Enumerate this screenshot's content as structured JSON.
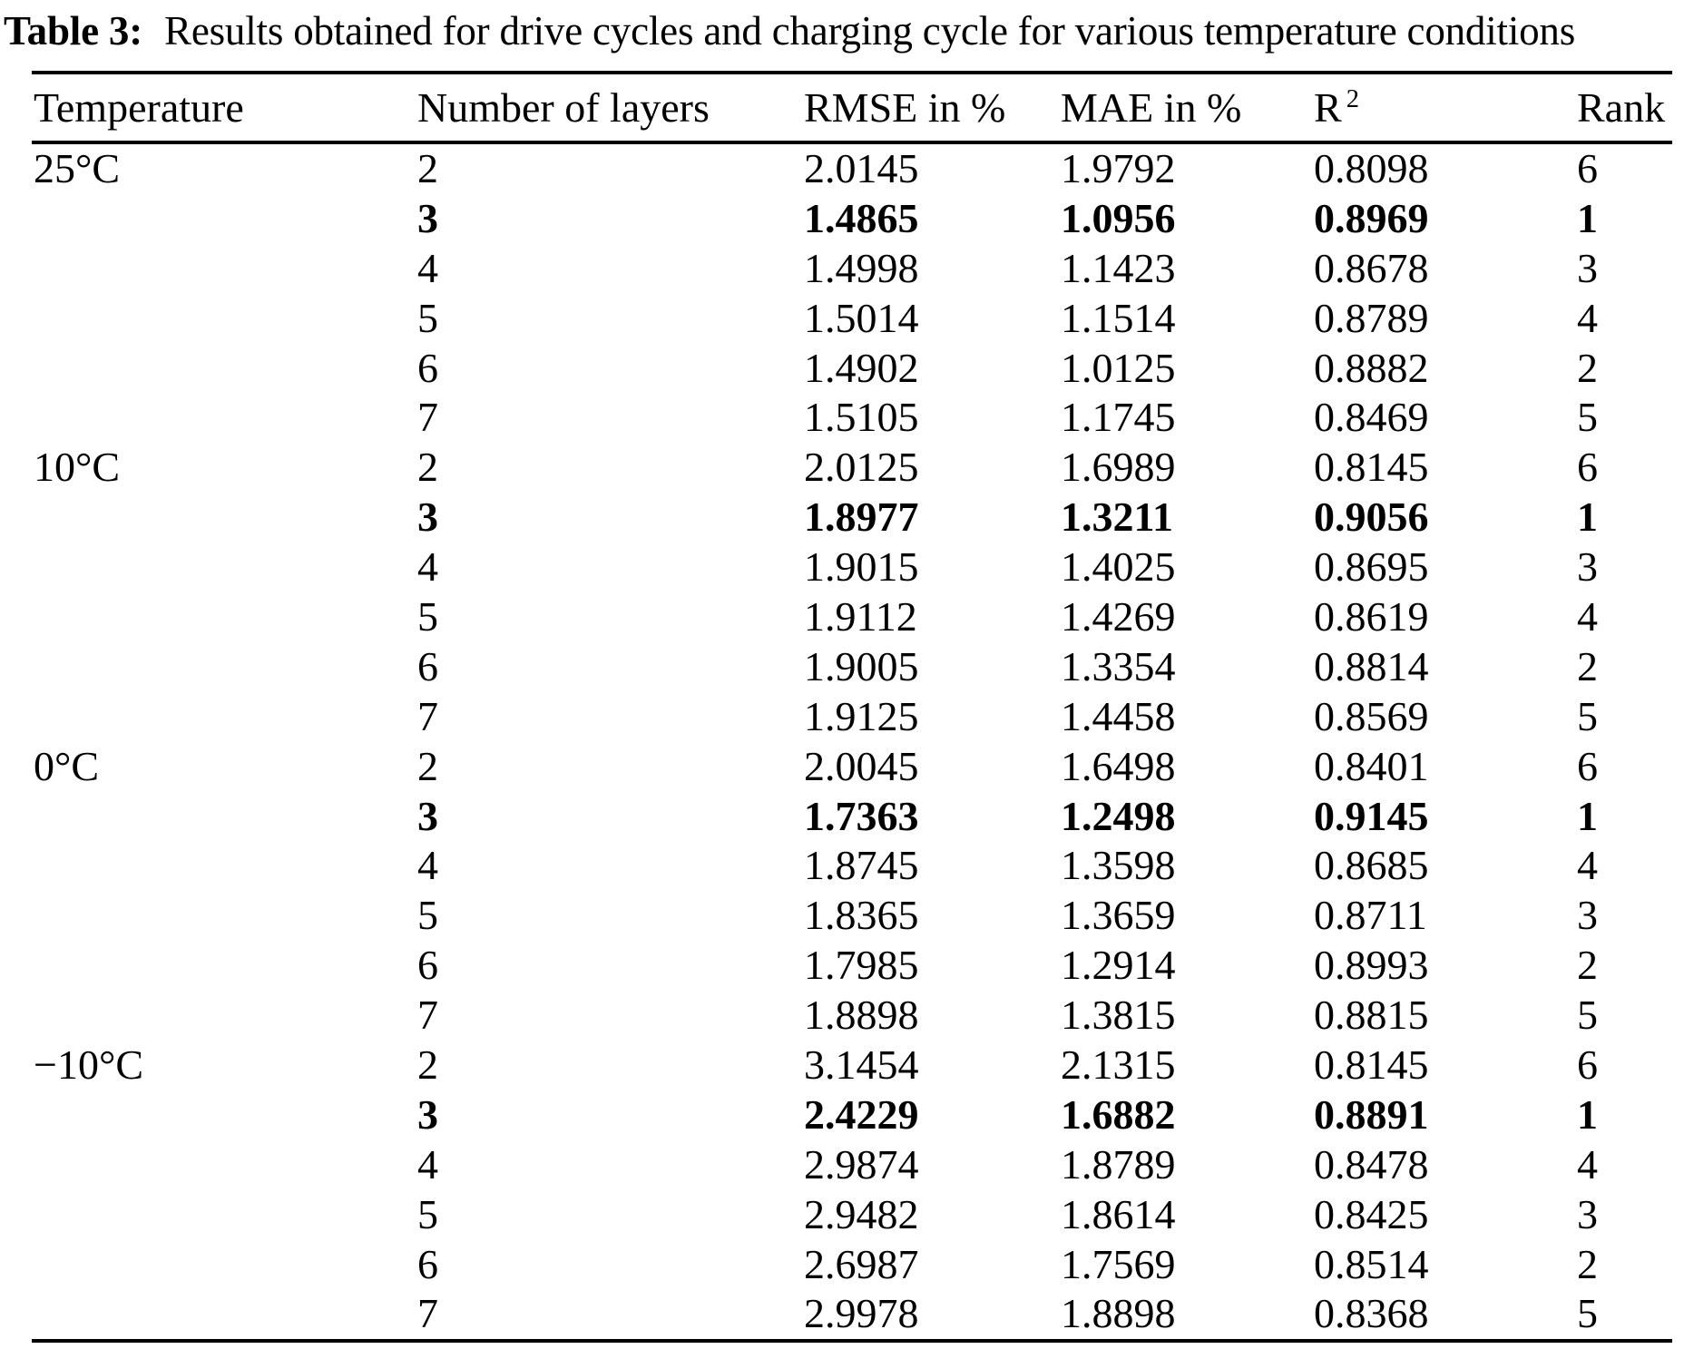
{
  "caption": {
    "label": "Table 3:",
    "text": "Results obtained for drive cycles and charging cycle for various temperature conditions"
  },
  "table": {
    "headers": {
      "temperature": "Temperature",
      "layers": "Number of layers",
      "rmse": "RMSE in %",
      "mae": "MAE in %",
      "r2_base": "R",
      "r2_sup": "2",
      "rank": "Rank"
    },
    "rows": [
      {
        "temp": "25°C",
        "layers": "2",
        "rmse": "2.0145",
        "mae": "1.9792",
        "r2": "0.8098",
        "rank": "6",
        "bold": false
      },
      {
        "temp": "",
        "layers": "3",
        "rmse": "1.4865",
        "mae": "1.0956",
        "r2": "0.8969",
        "rank": "1",
        "bold": true
      },
      {
        "temp": "",
        "layers": "4",
        "rmse": "1.4998",
        "mae": "1.1423",
        "r2": "0.8678",
        "rank": "3",
        "bold": false
      },
      {
        "temp": "",
        "layers": "5",
        "rmse": "1.5014",
        "mae": "1.1514",
        "r2": "0.8789",
        "rank": "4",
        "bold": false
      },
      {
        "temp": "",
        "layers": "6",
        "rmse": "1.4902",
        "mae": "1.0125",
        "r2": "0.8882",
        "rank": "2",
        "bold": false
      },
      {
        "temp": "",
        "layers": "7",
        "rmse": "1.5105",
        "mae": "1.1745",
        "r2": "0.8469",
        "rank": "5",
        "bold": false
      },
      {
        "temp": "10°C",
        "layers": "2",
        "rmse": "2.0125",
        "mae": "1.6989",
        "r2": "0.8145",
        "rank": "6",
        "bold": false
      },
      {
        "temp": "",
        "layers": "3",
        "rmse": "1.8977",
        "mae": "1.3211",
        "r2": "0.9056",
        "rank": "1",
        "bold": true
      },
      {
        "temp": "",
        "layers": "4",
        "rmse": "1.9015",
        "mae": "1.4025",
        "r2": "0.8695",
        "rank": "3",
        "bold": false
      },
      {
        "temp": "",
        "layers": "5",
        "rmse": "1.9112",
        "mae": "1.4269",
        "r2": "0.8619",
        "rank": "4",
        "bold": false
      },
      {
        "temp": "",
        "layers": "6",
        "rmse": "1.9005",
        "mae": "1.3354",
        "r2": "0.8814",
        "rank": "2",
        "bold": false
      },
      {
        "temp": "",
        "layers": "7",
        "rmse": "1.9125",
        "mae": "1.4458",
        "r2": "0.8569",
        "rank": "5",
        "bold": false
      },
      {
        "temp": "0°C",
        "layers": "2",
        "rmse": "2.0045",
        "mae": "1.6498",
        "r2": "0.8401",
        "rank": "6",
        "bold": false
      },
      {
        "temp": "",
        "layers": "3",
        "rmse": "1.7363",
        "mae": "1.2498",
        "r2": "0.9145",
        "rank": "1",
        "bold": true
      },
      {
        "temp": "",
        "layers": "4",
        "rmse": "1.8745",
        "mae": "1.3598",
        "r2": "0.8685",
        "rank": "4",
        "bold": false
      },
      {
        "temp": "",
        "layers": "5",
        "rmse": "1.8365",
        "mae": "1.3659",
        "r2": "0.8711",
        "rank": "3",
        "bold": false
      },
      {
        "temp": "",
        "layers": "6",
        "rmse": "1.7985",
        "mae": "1.2914",
        "r2": "0.8993",
        "rank": "2",
        "bold": false
      },
      {
        "temp": "",
        "layers": "7",
        "rmse": "1.8898",
        "mae": "1.3815",
        "r2": "0.8815",
        "rank": "5",
        "bold": false
      },
      {
        "temp": "−10°C",
        "layers": "2",
        "rmse": "3.1454",
        "mae": "2.1315",
        "r2": "0.8145",
        "rank": "6",
        "bold": false
      },
      {
        "temp": "",
        "layers": "3",
        "rmse": "2.4229",
        "mae": "1.6882",
        "r2": "0.8891",
        "rank": "1",
        "bold": true
      },
      {
        "temp": "",
        "layers": "4",
        "rmse": "2.9874",
        "mae": "1.8789",
        "r2": "0.8478",
        "rank": "4",
        "bold": false
      },
      {
        "temp": "",
        "layers": "5",
        "rmse": "2.9482",
        "mae": "1.8614",
        "r2": "0.8425",
        "rank": "3",
        "bold": false
      },
      {
        "temp": "",
        "layers": "6",
        "rmse": "2.6987",
        "mae": "1.7569",
        "r2": "0.8514",
        "rank": "2",
        "bold": false
      },
      {
        "temp": "",
        "layers": "7",
        "rmse": "2.9978",
        "mae": "1.8898",
        "r2": "0.8368",
        "rank": "5",
        "bold": false
      }
    ]
  }
}
